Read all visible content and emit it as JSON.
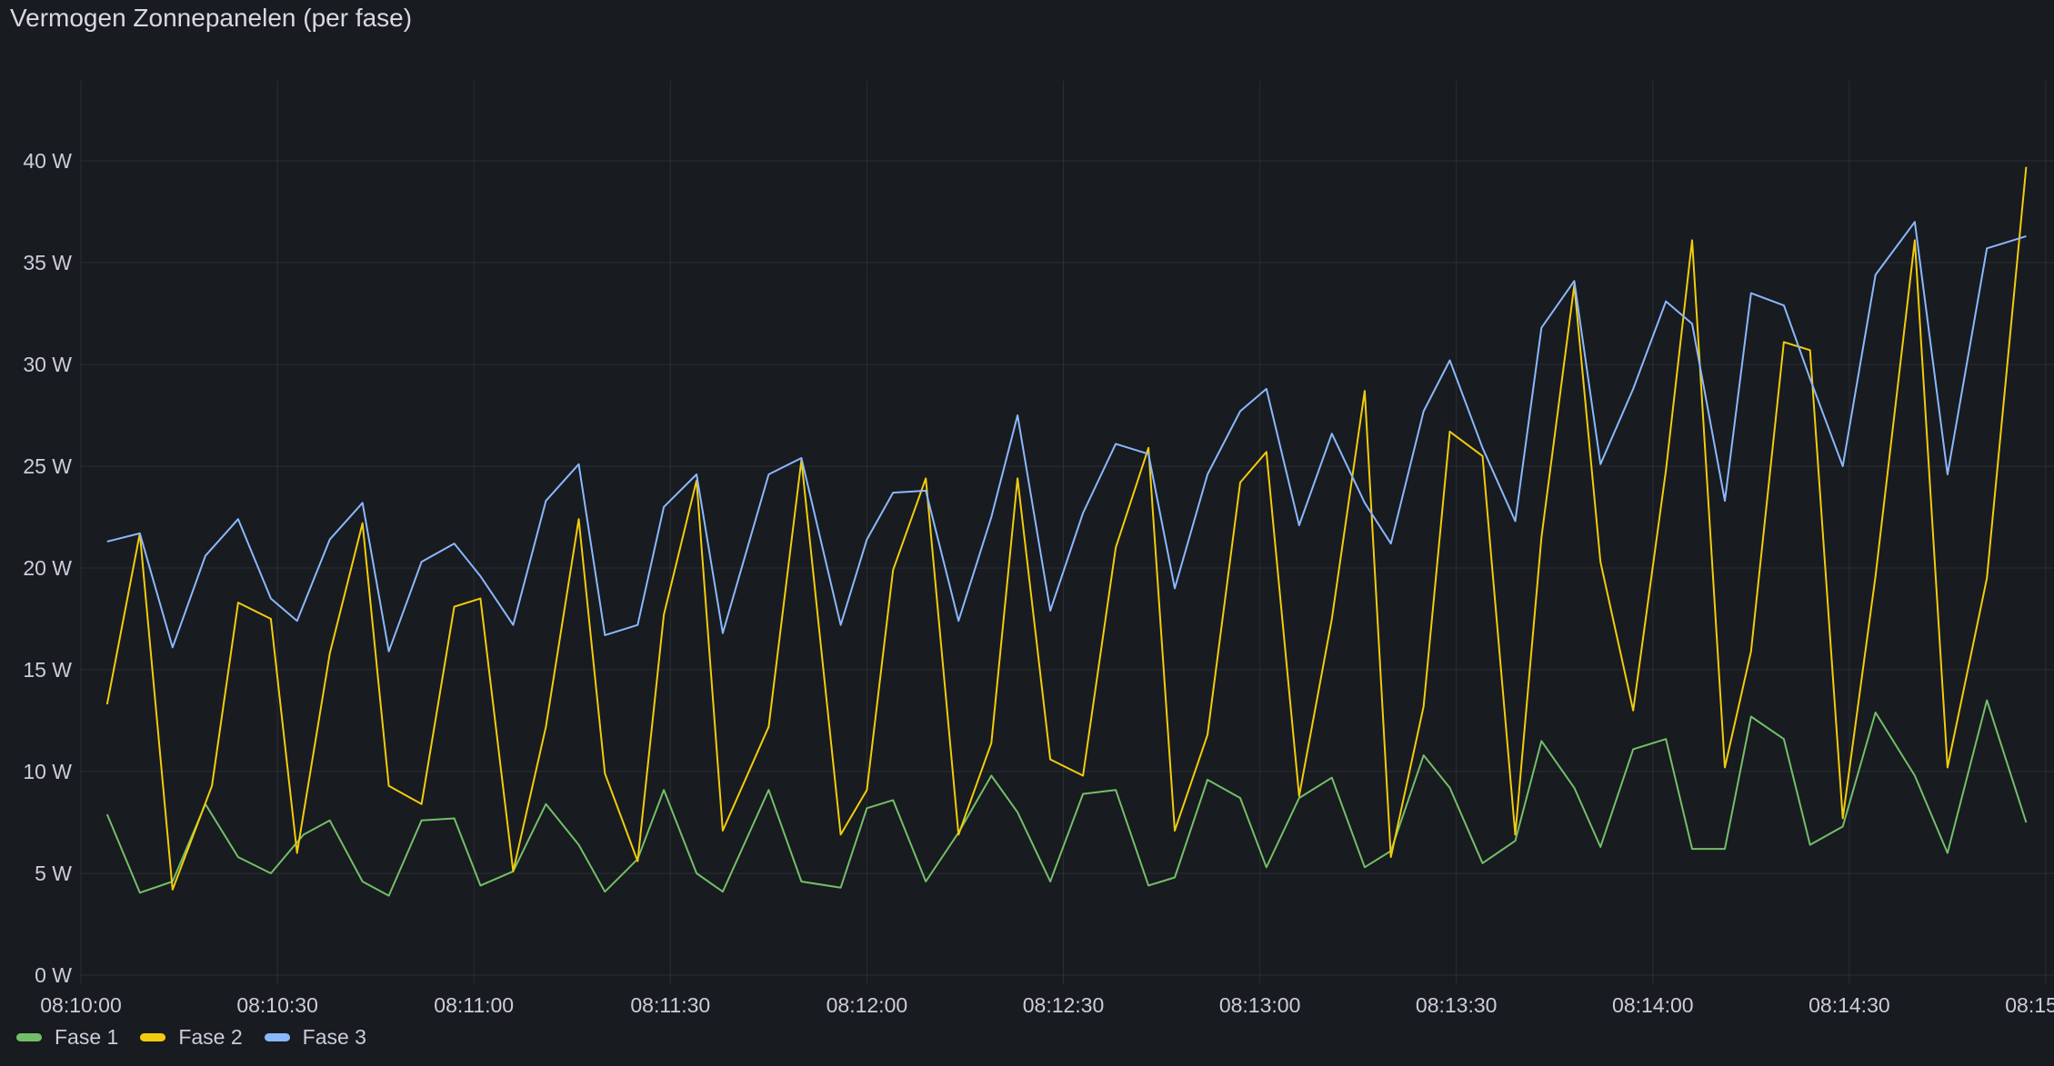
{
  "panel": {
    "title": "Vermogen Zonnepanelen (per fase)"
  },
  "chart_data": {
    "type": "line",
    "title": "Vermogen Zonnepanelen (per fase)",
    "xlabel": "",
    "ylabel": "",
    "x_unit": "seconds after 08:10:00",
    "xlim": [
      0,
      300
    ],
    "ylim": [
      0,
      44
    ],
    "y_ticks": [
      0,
      5,
      10,
      15,
      20,
      25,
      30,
      35,
      40
    ],
    "y_tick_labels": [
      "0 W",
      "5 W",
      "10 W",
      "15 W",
      "20 W",
      "25 W",
      "30 W",
      "35 W",
      "40 W"
    ],
    "x_ticks": [
      0,
      30,
      60,
      90,
      120,
      150,
      180,
      210,
      240,
      270,
      300
    ],
    "x_tick_labels": [
      "08:10:00",
      "08:10:30",
      "08:11:00",
      "08:11:30",
      "08:12:00",
      "08:12:30",
      "08:13:00",
      "08:13:30",
      "08:14:00",
      "08:14:30",
      "08:15:00"
    ],
    "grid": true,
    "legend_position": "bottom-left",
    "series": [
      {
        "name": "Fase 1",
        "color": "#73bf69",
        "x": [
          4,
          9,
          14,
          19,
          24,
          29,
          34,
          38,
          43,
          47,
          52,
          57,
          61,
          66,
          71,
          76,
          80,
          85,
          89,
          94,
          98,
          105,
          110,
          116,
          120,
          124,
          129,
          134,
          139,
          143,
          148,
          153,
          158,
          163,
          167,
          172,
          177,
          181,
          186,
          191,
          196,
          200,
          205,
          209,
          214,
          219,
          223,
          228,
          232,
          237,
          242,
          246,
          251,
          255,
          260,
          264,
          269,
          274,
          280,
          285,
          291,
          297
        ],
        "values": [
          7.9,
          4.05,
          4.6,
          8.4,
          5.8,
          5.0,
          6.9,
          7.6,
          4.6,
          3.9,
          7.6,
          7.7,
          4.4,
          5.1,
          8.4,
          6.4,
          4.1,
          5.7,
          9.1,
          5.0,
          4.1,
          9.1,
          4.6,
          4.3,
          8.2,
          8.6,
          4.6,
          7.0,
          9.8,
          8.0,
          4.6,
          8.9,
          9.1,
          4.4,
          4.8,
          9.6,
          8.7,
          5.3,
          8.7,
          9.7,
          5.3,
          6.1,
          10.8,
          9.2,
          5.5,
          6.6,
          11.5,
          9.2,
          6.3,
          11.1,
          11.6,
          6.2,
          6.2,
          12.7,
          11.6,
          6.4,
          7.3,
          12.9,
          9.8,
          6.0,
          13.5,
          7.5
        ]
      },
      {
        "name": "Fase 2",
        "color": "#f2cc0c",
        "x": [
          4,
          9,
          14,
          20,
          24,
          29,
          33,
          38,
          43,
          47,
          52,
          57,
          61,
          66,
          71,
          76,
          80,
          85,
          89,
          94,
          98,
          105,
          110,
          116,
          120,
          124,
          129,
          134,
          139,
          143,
          148,
          153,
          158,
          163,
          167,
          172,
          177,
          181,
          186,
          191,
          196,
          200,
          205,
          209,
          214,
          219,
          223,
          228,
          232,
          237,
          242,
          246,
          251,
          255,
          260,
          264,
          269,
          274,
          280,
          285,
          291,
          297
        ],
        "values": [
          13.3,
          21.7,
          4.2,
          9.3,
          18.3,
          17.5,
          6.0,
          15.8,
          22.2,
          9.3,
          8.4,
          18.1,
          18.5,
          5.1,
          12.2,
          22.4,
          9.9,
          5.6,
          17.7,
          24.3,
          7.1,
          12.2,
          25.3,
          6.9,
          9.1,
          19.9,
          24.4,
          6.9,
          11.4,
          24.4,
          10.6,
          9.8,
          21.0,
          25.9,
          7.1,
          11.8,
          24.2,
          25.7,
          8.8,
          17.5,
          28.7,
          5.8,
          13.2,
          26.7,
          25.5,
          6.9,
          21.5,
          33.9,
          20.3,
          13.0,
          24.8,
          36.1,
          10.2,
          15.9,
          31.1,
          30.7,
          7.7,
          19.6,
          36.1,
          10.2,
          19.5,
          39.7
        ]
      },
      {
        "name": "Fase 3",
        "color": "#8ab8ff",
        "x": [
          4,
          9,
          14,
          19,
          24,
          29,
          33,
          38,
          43,
          47,
          52,
          57,
          61,
          66,
          71,
          76,
          80,
          85,
          89,
          94,
          98,
          105,
          110,
          116,
          120,
          124,
          129,
          134,
          139,
          143,
          148,
          153,
          158,
          163,
          167,
          172,
          177,
          181,
          186,
          191,
          196,
          200,
          205,
          209,
          214,
          219,
          223,
          228,
          232,
          237,
          242,
          246,
          251,
          255,
          260,
          264,
          269,
          274,
          280,
          285,
          291,
          297
        ],
        "values": [
          21.3,
          21.7,
          16.1,
          20.6,
          22.4,
          18.5,
          17.4,
          21.4,
          23.2,
          15.9,
          20.3,
          21.2,
          19.6,
          17.2,
          23.3,
          25.1,
          16.7,
          17.2,
          23.0,
          24.6,
          16.8,
          24.6,
          25.4,
          17.2,
          21.4,
          23.7,
          23.8,
          17.4,
          22.5,
          27.5,
          17.9,
          22.7,
          26.1,
          25.6,
          19.0,
          24.6,
          27.7,
          28.8,
          22.1,
          26.6,
          23.2,
          21.2,
          27.7,
          30.2,
          25.9,
          22.3,
          31.8,
          34.1,
          25.1,
          28.8,
          33.1,
          32.0,
          23.3,
          33.5,
          32.9,
          29.3,
          25.0,
          34.4,
          37.0,
          24.6,
          35.7,
          36.3
        ]
      }
    ]
  }
}
